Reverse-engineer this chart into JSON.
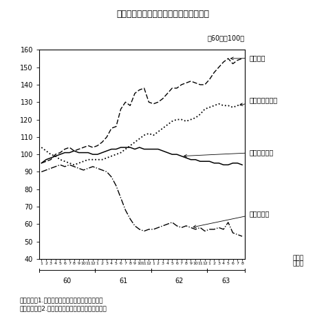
{
  "title": "第１－４－２図　地域別輸出数量の推移",
  "subtitle": "（60年＝100）",
  "footnote1": "（備考）　1.　大蔵省「貿易統計」により作成。",
  "footnote2": "　　　　　　2.　季節調整後の３ケ月移動平均値。",
  "xlabel_month": "（月）",
  "xlabel_year": "（年）",
  "ylim": [
    40,
    160
  ],
  "yticks": [
    40,
    50,
    60,
    70,
    80,
    90,
    100,
    110,
    120,
    130,
    140,
    150,
    160
  ],
  "years": [
    "60",
    "61",
    "62",
    "63"
  ],
  "months_per_year": [
    12,
    12,
    12,
    8
  ],
  "background_color": "#ffffff",
  "ec_label": "ＥＣ向け",
  "sea_label": "東南アジア向け",
  "us_label": "アメリカ向け",
  "mid_label": "中近東向け",
  "ec_data": [
    95,
    96,
    97,
    100,
    101,
    103,
    104,
    102,
    103,
    104,
    105,
    104,
    105,
    107,
    110,
    115,
    116,
    126,
    130,
    128,
    135,
    137,
    138,
    130,
    129,
    130,
    132,
    135,
    138,
    138,
    140,
    141,
    142,
    141,
    140,
    140,
    143,
    147,
    150,
    153,
    155,
    152,
    154,
    155
  ],
  "sea_data": [
    104,
    102,
    100,
    99,
    97,
    96,
    95,
    94,
    95,
    96,
    97,
    97,
    97,
    97,
    98,
    99,
    100,
    101,
    103,
    105,
    107,
    109,
    111,
    112,
    111,
    113,
    115,
    117,
    119,
    120,
    120,
    119,
    120,
    121,
    123,
    126,
    127,
    128,
    129,
    128,
    128,
    127,
    128,
    129
  ],
  "us_data": [
    95,
    97,
    98,
    99,
    100,
    101,
    101,
    102,
    101,
    101,
    101,
    100,
    100,
    101,
    102,
    103,
    103,
    104,
    104,
    104,
    103,
    104,
    103,
    103,
    103,
    103,
    102,
    101,
    100,
    100,
    99,
    98,
    97,
    97,
    96,
    96,
    96,
    95,
    95,
    94,
    94,
    95,
    95,
    94
  ],
  "mid_data": [
    90,
    91,
    92,
    93,
    94,
    93,
    94,
    93,
    92,
    91,
    92,
    93,
    92,
    91,
    90,
    87,
    82,
    75,
    68,
    63,
    59,
    57,
    56,
    57,
    57,
    58,
    59,
    60,
    61,
    59,
    58,
    59,
    58,
    57,
    58,
    56,
    57,
    57,
    58,
    57,
    61,
    55,
    54,
    53
  ]
}
